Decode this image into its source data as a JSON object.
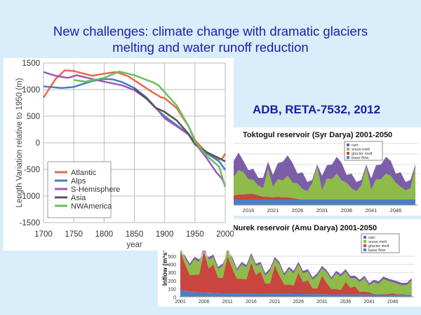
{
  "slide": {
    "title_line1": "New challenges: climate change with dramatic glaciers",
    "title_line2": "melting and water runoff reduction",
    "reference": "ADB, RETA-7532, 2012"
  },
  "chart_data": [
    {
      "type": "line",
      "xlabel": "year",
      "ylabel": "Length Variation relative to 1950 (m)",
      "xlim": [
        1700,
        2000
      ],
      "ylim": [
        -1500,
        1500
      ],
      "xticks": [
        1700,
        1750,
        1800,
        1850,
        1900,
        1950,
        2000
      ],
      "yticks": [
        -1500,
        -1000,
        -500,
        0,
        500,
        1000,
        1500
      ],
      "grid": true,
      "legend": "bottom-left",
      "series": [
        {
          "name": "Atlantic",
          "color": "#e8684a",
          "points": [
            [
              1700,
              850
            ],
            [
              1720,
              1200
            ],
            [
              1735,
              1360
            ],
            [
              1750,
              1350
            ],
            [
              1780,
              1260
            ],
            [
              1800,
              1300
            ],
            [
              1820,
              1330
            ],
            [
              1840,
              1250
            ],
            [
              1860,
              1100
            ],
            [
              1880,
              950
            ],
            [
              1895,
              850
            ],
            [
              1900,
              840
            ],
            [
              1920,
              650
            ],
            [
              1940,
              300
            ],
            [
              1950,
              50
            ],
            [
              1970,
              -200
            ],
            [
              1990,
              -310
            ],
            [
              1995,
              -300
            ],
            [
              2000,
              -200
            ]
          ]
        },
        {
          "name": "Alps",
          "color": "#3f7fc4",
          "points": [
            [
              1700,
              1060
            ],
            [
              1730,
              1030
            ],
            [
              1750,
              1050
            ],
            [
              1780,
              1160
            ],
            [
              1800,
              1200
            ],
            [
              1815,
              1190
            ],
            [
              1830,
              1140
            ],
            [
              1850,
              1030
            ],
            [
              1870,
              850
            ],
            [
              1890,
              600
            ],
            [
              1900,
              500
            ],
            [
              1920,
              330
            ],
            [
              1940,
              150
            ],
            [
              1950,
              -30
            ],
            [
              1970,
              -200
            ],
            [
              1990,
              -350
            ],
            [
              2000,
              -510
            ]
          ]
        },
        {
          "name": "S-Hemisphere",
          "color": "#9b59b6",
          "points": [
            [
              1700,
              1330
            ],
            [
              1720,
              1260
            ],
            [
              1740,
              1220
            ],
            [
              1755,
              1270
            ],
            [
              1780,
              1200
            ],
            [
              1800,
              1150
            ],
            [
              1830,
              1080
            ],
            [
              1850,
              990
            ],
            [
              1870,
              830
            ],
            [
              1890,
              600
            ],
            [
              1900,
              460
            ],
            [
              1920,
              310
            ],
            [
              1940,
              150
            ],
            [
              1950,
              0
            ],
            [
              1970,
              -300
            ],
            [
              1985,
              -550
            ],
            [
              1995,
              -680
            ],
            [
              2000,
              -820
            ]
          ]
        },
        {
          "name": "Asia",
          "color": "#555555",
          "points": [
            [
              1850,
              1020
            ],
            [
              1870,
              830
            ],
            [
              1885,
              660
            ],
            [
              1900,
              580
            ],
            [
              1920,
              420
            ],
            [
              1940,
              160
            ],
            [
              1950,
              -20
            ],
            [
              1970,
              -180
            ],
            [
              1990,
              -290
            ],
            [
              2000,
              -350
            ]
          ]
        },
        {
          "name": "NWAmerica",
          "color": "#6abf5e",
          "points": [
            [
              1750,
              1180
            ],
            [
              1770,
              1150
            ],
            [
              1800,
              1220
            ],
            [
              1825,
              1340
            ],
            [
              1850,
              1270
            ],
            [
              1880,
              1140
            ],
            [
              1890,
              1080
            ],
            [
              1900,
              950
            ],
            [
              1920,
              700
            ],
            [
              1940,
              300
            ],
            [
              1950,
              20
            ],
            [
              1970,
              -250
            ],
            [
              1990,
              -450
            ],
            [
              2000,
              -830
            ]
          ]
        }
      ]
    },
    {
      "type": "area",
      "title": "Toktogul reservoir (Syr Darya) 2001-2050",
      "xticks": [
        2016,
        2021,
        2026,
        2031,
        2036,
        2041,
        2046
      ],
      "legend": "top-right",
      "stacked": true,
      "x_start": 2013,
      "series": [
        {
          "name": "base flow",
          "color": "#4a7fc4",
          "values": [
            8,
            8,
            8,
            8,
            8,
            8,
            8,
            8,
            8,
            8,
            8,
            8,
            8,
            8,
            8,
            8,
            8,
            8,
            8,
            8,
            8,
            8,
            8,
            8,
            8,
            8,
            8,
            8,
            8,
            8,
            8,
            8,
            8,
            8,
            8,
            8,
            8,
            8
          ]
        },
        {
          "name": "glacier melt",
          "color": "#c9453f",
          "values": [
            6,
            7,
            7,
            8,
            8,
            6,
            4,
            4,
            3,
            4,
            3,
            3,
            2,
            1,
            0,
            0,
            0,
            0,
            0,
            0,
            0,
            0,
            0,
            0,
            0,
            0,
            0,
            0,
            0,
            0,
            0,
            0,
            0,
            0,
            0,
            0,
            0,
            0
          ]
        },
        {
          "name": "snow melt",
          "color": "#8fbb48",
          "values": [
            26,
            35,
            32,
            21,
            20,
            14,
            12,
            40,
            15,
            25,
            24,
            31,
            22,
            22,
            15,
            12,
            23,
            47,
            13,
            30,
            29,
            37,
            27,
            24,
            16,
            12,
            20,
            47,
            14,
            29,
            29,
            37,
            34,
            24,
            18,
            13,
            16,
            47
          ]
        },
        {
          "name": "rain",
          "color": "#7b5ea7",
          "values": [
            23,
            25,
            16,
            13,
            16,
            11,
            15,
            10,
            17,
            23,
            27,
            29,
            28,
            14,
            24,
            13,
            5,
            3,
            21,
            19,
            21,
            24,
            25,
            11,
            21,
            13,
            8,
            3,
            16,
            20,
            21,
            24,
            21,
            13,
            21,
            12,
            12,
            3
          ]
        }
      ]
    },
    {
      "type": "area",
      "title": "w Nurek reservoir (Amu Darya) 2001-2050",
      "ylabel": "Inflow (m³s⁻¹)",
      "xticks": [
        2001,
        2006,
        2011,
        2016,
        2021,
        2026,
        2031,
        2036,
        2041,
        2046
      ],
      "yticks": [
        0,
        100,
        200,
        300,
        400,
        500
      ],
      "legend": "top-right",
      "stacked": true,
      "x_start": 2001,
      "series": [
        {
          "name": "base flow",
          "color": "#4a7fc4",
          "values": [
            80,
            75,
            65,
            60,
            55,
            52,
            50,
            48,
            45,
            43,
            42,
            42,
            42,
            41,
            40,
            40,
            40,
            39,
            38,
            37,
            37,
            37,
            36,
            36,
            35,
            35,
            34,
            33,
            32,
            32,
            31,
            31,
            30,
            30,
            30,
            30,
            29,
            29,
            28,
            28,
            27,
            27,
            26,
            26,
            26,
            25,
            25,
            25,
            25,
            25
          ]
        },
        {
          "name": "glacier melt",
          "color": "#c9453f",
          "values": [
            480,
            325,
            205,
            210,
            220,
            538,
            300,
            352,
            190,
            192,
            458,
            308,
            178,
            179,
            175,
            380,
            230,
            271,
            127,
            128,
            353,
            223,
            114,
            114,
            105,
            260,
            146,
            172,
            73,
            73,
            229,
            139,
            65,
            65,
            55,
            155,
            81,
            101,
            32,
            37,
            28,
            8,
            4,
            4,
            9,
            20,
            5,
            10,
            0,
            0
          ]
        },
        {
          "name": "snow melt",
          "color": "#8fbb48",
          "values": [
            40,
            80,
            110,
            190,
            155,
            30,
            110,
            90,
            105,
            145,
            100,
            110,
            100,
            180,
            145,
            90,
            110,
            90,
            95,
            155,
            70,
            140,
            110,
            190,
            150,
            105,
            110,
            105,
            105,
            155,
            90,
            130,
            115,
            195,
            165,
            125,
            120,
            100,
            120,
            165,
            85,
            145,
            130,
            190,
            160,
            135,
            130,
            105,
            120,
            175
          ]
        },
        {
          "name": "rain",
          "color": "#7b5ea7",
          "values": [
            30,
            28,
            30,
            32,
            30,
            30,
            28,
            30,
            30,
            30,
            32,
            30,
            28,
            30,
            30,
            30,
            28,
            30,
            30,
            30,
            30,
            28,
            30,
            30,
            30,
            30,
            28,
            30,
            30,
            30,
            30,
            28,
            30,
            30,
            30,
            30,
            28,
            30,
            30,
            30,
            28,
            30,
            30,
            30,
            30,
            28,
            30,
            30,
            30,
            30
          ]
        }
      ]
    }
  ]
}
